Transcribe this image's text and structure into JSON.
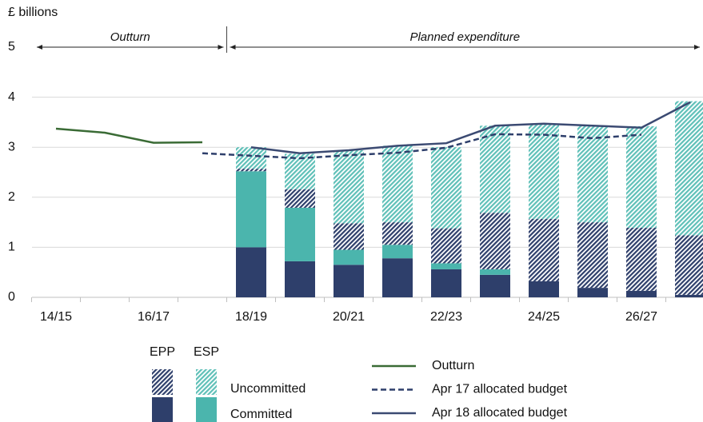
{
  "chart_data": {
    "type": "bar",
    "y_unit": "£ billions",
    "annotations": [
      {
        "text": "Outturn",
        "from": 0,
        "to": 3
      },
      {
        "text": "Planned expenditure",
        "from": 4,
        "to": 13
      }
    ],
    "categories": [
      "14/15",
      null,
      "16/17",
      null,
      "18/19",
      null,
      "20/21",
      null,
      "22/23",
      null,
      "24/25",
      null,
      "26/27",
      null
    ],
    "ylim": [
      0,
      5
    ],
    "yticks": [
      0,
      1,
      2,
      3,
      4,
      5
    ],
    "grid": true,
    "stacked": true,
    "legend_columns": [
      "EPP",
      "ESP"
    ],
    "legend_rows": [
      "Uncommitted",
      "Committed"
    ],
    "series": [
      {
        "column": 0,
        "row": 1,
        "color": "#2e3f6b",
        "hatched": false,
        "values": [
          null,
          null,
          null,
          null,
          1.0,
          0.72,
          0.65,
          0.78,
          0.56,
          0.45,
          0.32,
          0.19,
          0.13,
          0.05
        ]
      },
      {
        "column": 1,
        "row": 1,
        "color": "#4bb5ad",
        "hatched": false,
        "values": [
          null,
          null,
          null,
          null,
          1.52,
          1.07,
          0.3,
          0.27,
          0.12,
          0.11,
          0,
          0,
          0,
          0
        ]
      },
      {
        "column": 0,
        "row": 0,
        "color": "#2e3f6b",
        "hatched": true,
        "values": [
          null,
          null,
          null,
          null,
          0.05,
          0.37,
          0.53,
          0.45,
          0.7,
          1.13,
          1.25,
          1.31,
          1.26,
          1.19
        ]
      },
      {
        "column": 1,
        "row": 0,
        "color": "#5fc0b8",
        "hatched": true,
        "values": [
          null,
          null,
          null,
          null,
          0.43,
          0.71,
          1.46,
          1.53,
          1.62,
          1.74,
          1.88,
          1.93,
          2.03,
          2.68
        ]
      }
    ],
    "lines": [
      {
        "name": "Outturn",
        "color": "#3a6b35",
        "dashed": false,
        "values": [
          3.37,
          3.29,
          3.09,
          3.1,
          null,
          null,
          null,
          null,
          null,
          null,
          null,
          null,
          null,
          null
        ]
      },
      {
        "name": "Apr 17 allocated budget",
        "color": "#2e3f6b",
        "dashed": true,
        "values": [
          null,
          null,
          null,
          2.88,
          2.83,
          2.78,
          2.84,
          2.89,
          2.99,
          3.26,
          3.25,
          3.18,
          3.25,
          null
        ]
      },
      {
        "name": "Apr 18 allocated budget",
        "color": "#3b4a72",
        "dashed": false,
        "values": [
          null,
          null,
          null,
          null,
          3.0,
          2.88,
          2.94,
          3.03,
          3.08,
          3.43,
          3.47,
          3.43,
          3.39,
          3.9
        ]
      }
    ]
  }
}
